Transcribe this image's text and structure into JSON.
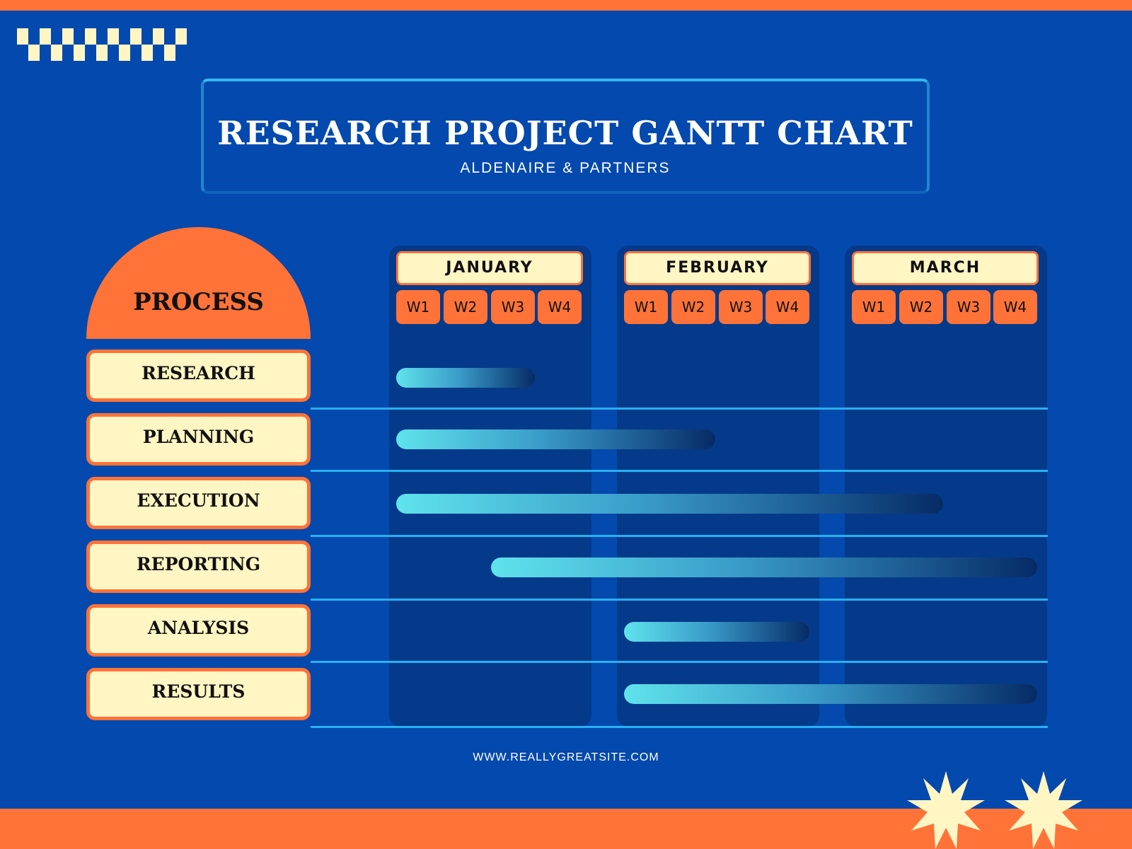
{
  "header": {
    "title": "RESEARCH PROJECT GANTT CHART",
    "subtitle": "ALDENAIRE & PARTNERS"
  },
  "footer": {
    "url": "WWW.REALLYGREATSITE.COM"
  },
  "colors": {
    "background": "#0449AD",
    "accent": "#FF7338",
    "label_fill": "#FFF6C4",
    "panel": "#053A8A",
    "line": "#28B0F2",
    "bar_start": "#5FE3EC",
    "bar_end": "#062B66"
  },
  "chart_data": {
    "type": "gantt",
    "process_header": "PROCESS",
    "months": [
      {
        "label": "JANUARY",
        "weeks": [
          "W1",
          "W2",
          "W3",
          "W4"
        ]
      },
      {
        "label": "FEBRUARY",
        "weeks": [
          "W1",
          "W2",
          "W3",
          "W4"
        ]
      },
      {
        "label": "MARCH",
        "weeks": [
          "W1",
          "W2",
          "W3",
          "W4"
        ]
      }
    ],
    "tasks": [
      {
        "name": "RESEARCH",
        "start_week": 1,
        "end_week": 3
      },
      {
        "name": "PLANNING",
        "start_week": 1,
        "end_week": 6
      },
      {
        "name": "EXECUTION",
        "start_week": 1,
        "end_week": 10
      },
      {
        "name": "REPORTING",
        "start_week": 3,
        "end_week": 12
      },
      {
        "name": "ANALYSIS",
        "start_week": 5,
        "end_week": 8
      },
      {
        "name": "RESULTS",
        "start_week": 5,
        "end_week": 12
      }
    ]
  }
}
